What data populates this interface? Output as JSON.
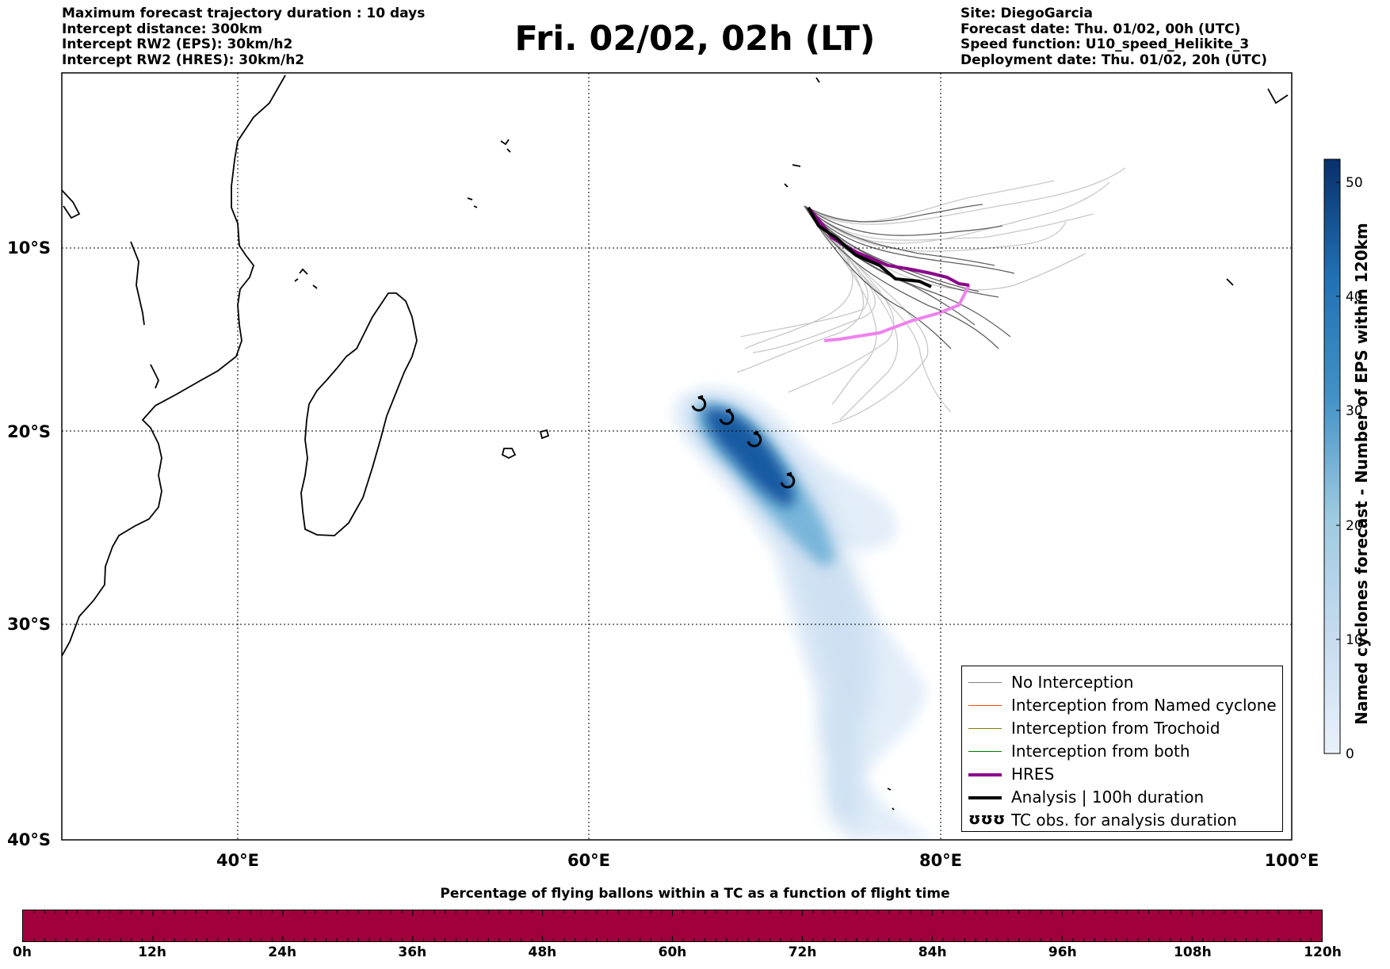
{
  "header_left": {
    "line1": "Maximum forecast trajectory duration : 10 days",
    "line2": "Intercept distance: 300km",
    "line3": "Intercept RW2 (EPS):  30km/h2",
    "line4": "Intercept RW2 (HRES): 30km/h2"
  },
  "title": "Fri. 02/02, 02h (LT)",
  "header_right": {
    "line1": "Site: DiegoGarcia",
    "line2": "Forecast date: Thu. 01/02, 00h (UTC)",
    "line3": "Speed function: U10_speed_Helikite_3",
    "line4": "Deployment date: Thu. 01/02, 20h (UTC)"
  },
  "map": {
    "lon_range": [
      30,
      100
    ],
    "lat_range": [
      -40,
      2
    ],
    "lon_ticks": [
      {
        "value": 40,
        "label": "40°E"
      },
      {
        "value": 60,
        "label": "60°E"
      },
      {
        "value": 80,
        "label": "80°E"
      },
      {
        "value": 100,
        "label": "100°E"
      }
    ],
    "lat_ticks": [
      {
        "value": -10,
        "label": "10°S"
      },
      {
        "value": -20,
        "label": "20°S"
      },
      {
        "value": -30,
        "label": "30°S"
      },
      {
        "value": -40,
        "label": "40°S"
      }
    ],
    "grid": true,
    "hres_color": "#8b008b",
    "hres_forecast_color": "#ee82ee",
    "analysis_color": "#000000",
    "hres_track": [
      [
        72.3,
        -7.5
      ],
      [
        73.0,
        -8.5
      ],
      [
        74.0,
        -9.6
      ],
      [
        75.5,
        -10.4
      ],
      [
        77.0,
        -11.2
      ],
      [
        78.5,
        -11.8
      ],
      [
        80.0,
        -12.0
      ],
      [
        81.5,
        -12.3
      ]
    ],
    "hres_forecast_track": [
      [
        81.5,
        -12.3
      ],
      [
        81.0,
        -13.0
      ],
      [
        79.5,
        -13.6
      ],
      [
        77.5,
        -14.2
      ],
      [
        75.0,
        -14.8
      ],
      [
        73.5,
        -15.0
      ]
    ],
    "analysis_track": [
      [
        72.3,
        -7.5
      ],
      [
        73.2,
        -9.0
      ],
      [
        74.5,
        -10.2
      ],
      [
        76.0,
        -10.9
      ],
      [
        77.5,
        -11.5
      ],
      [
        79.0,
        -12.0
      ],
      [
        79.5,
        -12.2
      ]
    ],
    "tc_obs": [
      [
        66.2,
        -18.5
      ],
      [
        67.7,
        -19.3
      ],
      [
        69.3,
        -20.5
      ],
      [
        71.2,
        -22.6
      ]
    ],
    "density_core": [
      {
        "lon": 66.5,
        "lat": -18.8,
        "level": 52
      },
      {
        "lon": 68.5,
        "lat": -20.2,
        "level": 50
      },
      {
        "lon": 70.5,
        "lat": -22.3,
        "level": 42
      },
      {
        "lon": 73.0,
        "lat": -25.5,
        "level": 25
      },
      {
        "lon": 74.5,
        "lat": -28.5,
        "level": 18
      },
      {
        "lon": 75.8,
        "lat": -31.5,
        "level": 14
      },
      {
        "lon": 76.5,
        "lat": -34.5,
        "level": 10
      },
      {
        "lon": 77.2,
        "lat": -37.5,
        "level": 6
      },
      {
        "lon": 78.5,
        "lat": -39.5,
        "level": 4
      }
    ]
  },
  "legend": {
    "items": [
      {
        "label": "No Interception",
        "color": "#808080",
        "width": 1.2
      },
      {
        "label": "Interception from Named cyclone",
        "color": "#ff4500",
        "width": 1.2
      },
      {
        "label": "Interception from Trochoid",
        "color": "#808000",
        "width": 1.2
      },
      {
        "label": "Interception from both",
        "color": "#008000",
        "width": 1.2
      },
      {
        "label": "HRES",
        "color": "#8b008b",
        "width": 4
      },
      {
        "label": "Analysis | 100h duration",
        "color": "#000000",
        "width": 4
      },
      {
        "label": "TC obs. for analysis duration",
        "color": "#000000",
        "symbol": "ʊʊʊ"
      }
    ]
  },
  "colorbar": {
    "label": "Named cyclones forecast - Number of EPS within 120km",
    "ticks": [
      0,
      10,
      20,
      30,
      40,
      50
    ],
    "range": [
      0,
      52
    ],
    "color_low": "#e8f1fb",
    "color_high": "#08306b"
  },
  "bottom_bar": {
    "caption": "Percentage of flying ballons within a TC as a function of flight time",
    "color": "#a0003c",
    "ticks": [
      "0h",
      "12h",
      "24h",
      "36h",
      "48h",
      "60h",
      "72h",
      "84h",
      "96h",
      "108h",
      "120h"
    ]
  }
}
